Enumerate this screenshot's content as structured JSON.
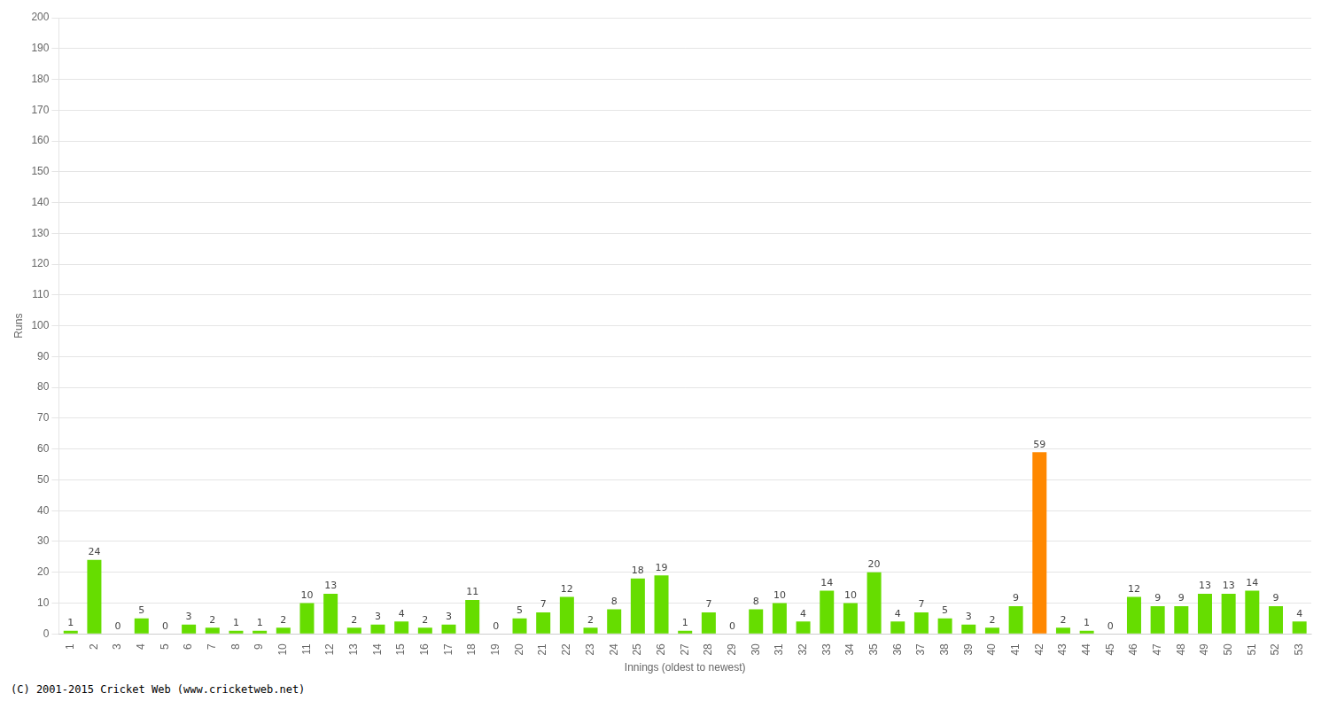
{
  "chart_data": {
    "type": "bar",
    "categories": [
      "1",
      "2",
      "3",
      "4",
      "5",
      "6",
      "7",
      "8",
      "9",
      "10",
      "11",
      "12",
      "13",
      "14",
      "15",
      "16",
      "17",
      "18",
      "19",
      "20",
      "21",
      "22",
      "23",
      "24",
      "25",
      "26",
      "27",
      "28",
      "29",
      "30",
      "31",
      "32",
      "33",
      "34",
      "35",
      "36",
      "37",
      "38",
      "39",
      "40",
      "41",
      "42",
      "43",
      "44",
      "45",
      "46",
      "47",
      "48",
      "49",
      "50",
      "51",
      "52",
      "53"
    ],
    "values": [
      1,
      24,
      0,
      5,
      0,
      3,
      2,
      1,
      1,
      2,
      10,
      13,
      2,
      3,
      4,
      2,
      3,
      11,
      0,
      5,
      7,
      12,
      2,
      8,
      18,
      19,
      1,
      7,
      0,
      8,
      10,
      4,
      14,
      10,
      20,
      4,
      7,
      5,
      3,
      2,
      9,
      59,
      2,
      1,
      0,
      12,
      9,
      9,
      13,
      13,
      14,
      9,
      4
    ],
    "colors": [
      "#66dd00",
      "#66dd00",
      "#66dd00",
      "#66dd00",
      "#66dd00",
      "#66dd00",
      "#66dd00",
      "#66dd00",
      "#66dd00",
      "#66dd00",
      "#66dd00",
      "#66dd00",
      "#66dd00",
      "#66dd00",
      "#66dd00",
      "#66dd00",
      "#66dd00",
      "#66dd00",
      "#66dd00",
      "#66dd00",
      "#66dd00",
      "#66dd00",
      "#66dd00",
      "#66dd00",
      "#66dd00",
      "#66dd00",
      "#66dd00",
      "#66dd00",
      "#66dd00",
      "#66dd00",
      "#66dd00",
      "#66dd00",
      "#66dd00",
      "#66dd00",
      "#66dd00",
      "#66dd00",
      "#66dd00",
      "#66dd00",
      "#66dd00",
      "#66dd00",
      "#66dd00",
      "#ff8800",
      "#66dd00",
      "#66dd00",
      "#66dd00",
      "#66dd00",
      "#66dd00",
      "#66dd00",
      "#66dd00",
      "#66dd00",
      "#66dd00",
      "#66dd00",
      "#66dd00"
    ],
    "xlabel": "Innings (oldest to newest)",
    "ylabel": "Runs",
    "ylim": [
      0,
      200
    ],
    "yticks": [
      0,
      10,
      20,
      30,
      40,
      50,
      60,
      70,
      80,
      90,
      100,
      110,
      120,
      130,
      140,
      150,
      160,
      170,
      180,
      190,
      200
    ],
    "grid": true,
    "data_labels": true,
    "footer": "(C) 2001-2015 Cricket Web (www.cricketweb.net)"
  }
}
